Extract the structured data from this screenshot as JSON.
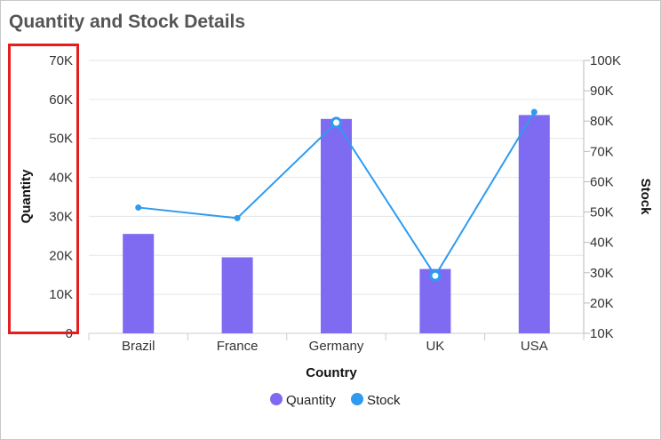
{
  "chart_data": {
    "type": "bar+line",
    "title": "Quantity and Stock Details",
    "categories": [
      "Brazil",
      "France",
      "Germany",
      "UK",
      "USA"
    ],
    "series": [
      {
        "name": "Quantity",
        "type": "bar",
        "axis": "left",
        "color": "#7f6af2",
        "values": [
          25500,
          19500,
          55000,
          16500,
          56000
        ]
      },
      {
        "name": "Stock",
        "type": "line",
        "axis": "right",
        "color": "#2e9bf0",
        "values": [
          51500,
          48000,
          79500,
          29000,
          83000
        ],
        "hollow_markers": [
          false,
          false,
          true,
          true,
          false
        ]
      }
    ],
    "xlabel": "Country",
    "ylabel_left": "Quantity",
    "ylabel_right": "Stock",
    "ylim_left": [
      0,
      70000
    ],
    "ylim_right": [
      10000,
      100000
    ],
    "yticks_left": [
      "0",
      "10K",
      "20K",
      "30K",
      "40K",
      "50K",
      "60K",
      "70K"
    ],
    "yticks_right": [
      "10K",
      "20K",
      "30K",
      "40K",
      "50K",
      "60K",
      "70K",
      "80K",
      "90K",
      "100K"
    ],
    "legend": [
      "Quantity",
      "Stock"
    ],
    "legend_position": "bottom-center",
    "grid": true
  }
}
